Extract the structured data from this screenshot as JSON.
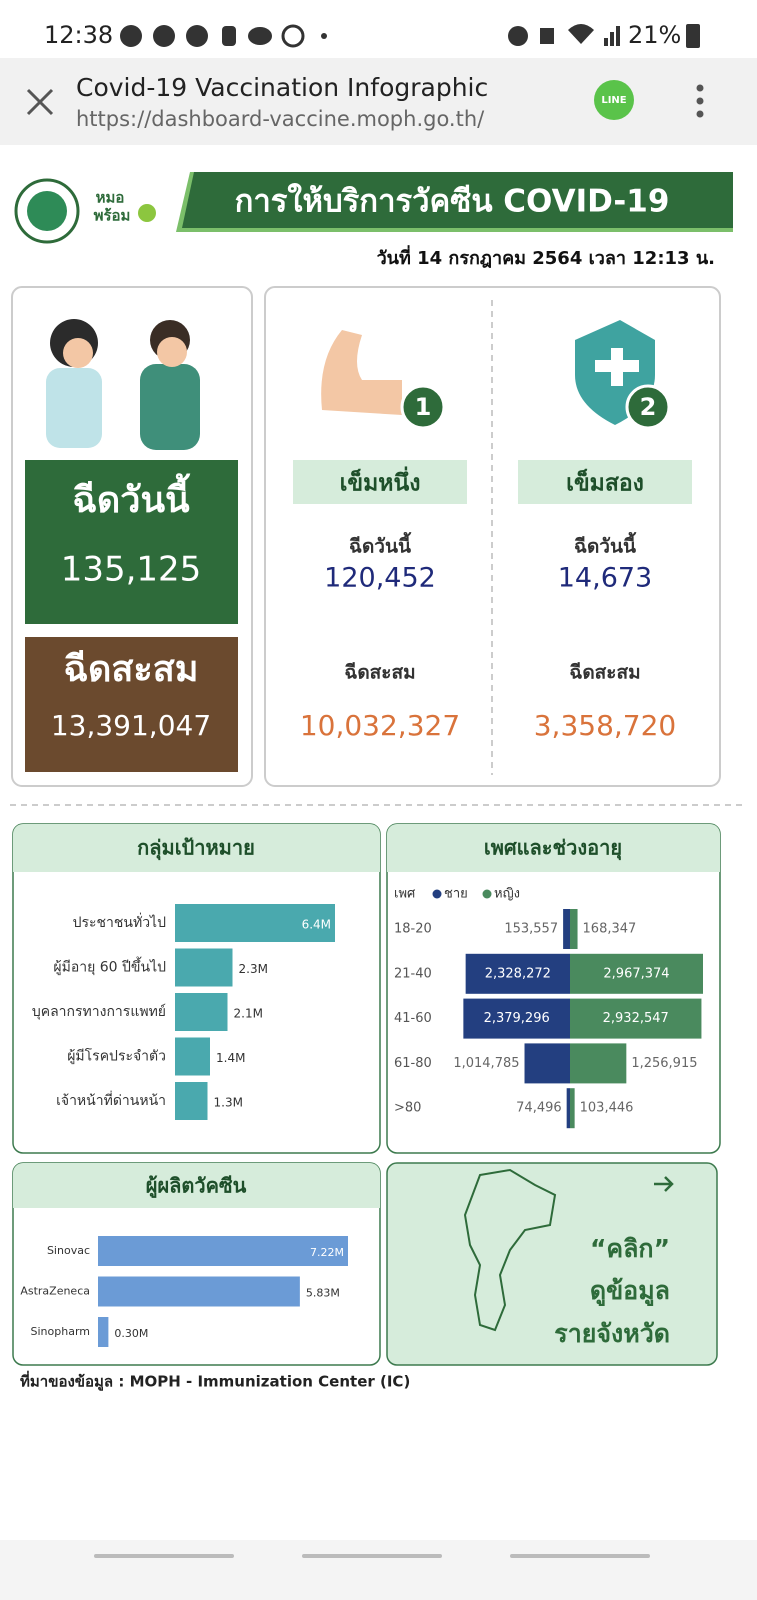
{
  "status_bar": {
    "time": "12:38",
    "battery": "21%"
  },
  "browser": {
    "title": "Covid-19 Vaccination Infographic",
    "url": "https://dashboard-vaccine.moph.go.th/",
    "share_icon": "LINE"
  },
  "header": {
    "logo_text": [
      "หมอ",
      "พร้อม"
    ],
    "title": "การให้บริการวัคซีน COVID-19",
    "date": "วันที่ 14 กรกฎาคม 2564 เวลา 12:13 น."
  },
  "summary": {
    "today_label": "ฉีดวันนี้",
    "today_value": "135,125",
    "cumulative_label": "ฉีดสะสม",
    "cumulative_value": "13,391,047"
  },
  "doses": [
    {
      "badge": "1",
      "label": "เข็มหนึ่ง",
      "today_label": "ฉีดวันนี้",
      "today_value": "120,452",
      "cumulative_label": "ฉีดสะสม",
      "cumulative_value": "10,032,327"
    },
    {
      "badge": "2",
      "label": "เข็มสอง",
      "today_label": "ฉีดวันนี้",
      "today_value": "14,673",
      "cumulative_label": "ฉีดสะสม",
      "cumulative_value": "3,358,720"
    }
  ],
  "charts": {
    "target_groups": {
      "type": "hbar",
      "title": "กลุ่มเป้าหมาย",
      "color": "#4aa9ae",
      "categories": [
        "ประชาชนทั่วไป",
        "ผู้มีอายุ 60 ปีขึ้นไป",
        "บุคลากรทางการแพทย์",
        "ผู้มีโรคประจำตัว",
        "เจ้าหน้าที่ด่านหน้า"
      ],
      "values": [
        6400000,
        2300000,
        2100000,
        1400000,
        1300000
      ],
      "value_labels": [
        "6.4M",
        "2.3M",
        "2.1M",
        "1.4M",
        "1.3M"
      ]
    },
    "gender_age": {
      "type": "pyramid",
      "title": "เพศและช่วงอายุ",
      "legend_title": "เพศ",
      "categories": [
        "18-20",
        "21-40",
        "41-60",
        "61-80",
        ">80"
      ],
      "series": [
        {
          "name": "ชาย",
          "color": "#233f80",
          "values": [
            153557,
            2328272,
            2379296,
            1014785,
            74496
          ],
          "value_labels": [
            "153,557",
            "2,328,272",
            "2,379,296",
            "1,014,785",
            "74,496"
          ]
        },
        {
          "name": "หญิง",
          "color": "#4a8a5e",
          "values": [
            168347,
            2967374,
            2932547,
            1256915,
            103446
          ],
          "value_labels": [
            "168,347",
            "2,967,374",
            "2,932,547",
            "1,256,915",
            "103,446"
          ]
        }
      ]
    },
    "manufacturers": {
      "type": "hbar",
      "title": "ผู้ผลิตวัคซีน",
      "color": "#6b9bd6",
      "categories": [
        "Sinovac",
        "AstraZeneca",
        "Sinopharm"
      ],
      "values": [
        7220000,
        5830000,
        300000
      ],
      "value_labels": [
        "7.22M",
        "5.83M",
        "0.30M"
      ]
    }
  },
  "map_card": {
    "lines": [
      "“คลิก”",
      "ดูข้อมูล",
      "รายจังหวัด"
    ]
  },
  "source": "ที่มาของข้อมูล : MOPH - Immunization Center (IC)"
}
